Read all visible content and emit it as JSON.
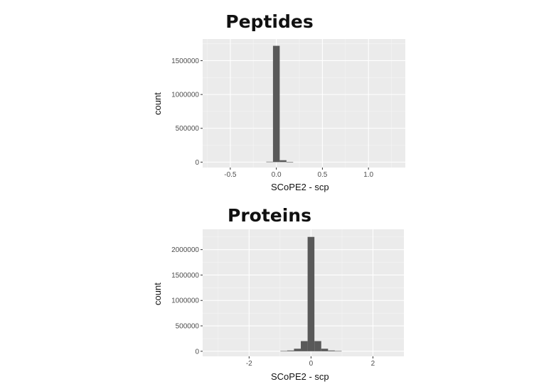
{
  "chart_data": [
    {
      "type": "bar",
      "title": "Peptides",
      "xlabel": "SCoPE2 - scp",
      "ylabel": "count",
      "xlim": [
        -0.8,
        1.4
      ],
      "ylim": [
        -80000,
        1820000
      ],
      "xticks": [
        -0.5,
        0.0,
        0.5,
        1.0
      ],
      "xtick_labels": [
        "-0.5",
        "0.0",
        "0.5",
        "1.0"
      ],
      "yticks": [
        0,
        500000,
        1000000,
        1500000
      ],
      "ytick_labels": [
        "0",
        "500000",
        "1000000",
        "1500000"
      ],
      "bin_width": 0.073,
      "bins": [
        {
          "x": -0.073,
          "count": 6000
        },
        {
          "x": 0.0,
          "count": 1720000
        },
        {
          "x": 0.073,
          "count": 28000
        },
        {
          "x": 0.146,
          "count": 3000
        }
      ],
      "grid": true
    },
    {
      "type": "bar",
      "title": "Proteins",
      "xlabel": "SCoPE2 - scp",
      "ylabel": "count",
      "xlim": [
        -3.5,
        3.0
      ],
      "ylim": [
        -100000,
        2400000
      ],
      "xticks": [
        -2,
        0,
        2
      ],
      "xtick_labels": [
        "-2",
        "0",
        "2"
      ],
      "yticks": [
        0,
        500000,
        1000000,
        1500000,
        2000000
      ],
      "ytick_labels": [
        "0",
        "500000",
        "1000000",
        "1500000",
        "2000000"
      ],
      "bin_width": 0.22,
      "bins": [
        {
          "x": -0.88,
          "count": 5000
        },
        {
          "x": -0.66,
          "count": 15000
        },
        {
          "x": -0.44,
          "count": 50000
        },
        {
          "x": -0.22,
          "count": 200000
        },
        {
          "x": 0.0,
          "count": 2250000
        },
        {
          "x": 0.22,
          "count": 200000
        },
        {
          "x": 0.44,
          "count": 50000
        },
        {
          "x": 0.66,
          "count": 15000
        },
        {
          "x": 0.88,
          "count": 5000
        }
      ],
      "grid": true
    }
  ],
  "colors": {
    "panel_bg": "#ebebeb",
    "grid_major": "#ffffff",
    "bar_fill": "#595959"
  }
}
